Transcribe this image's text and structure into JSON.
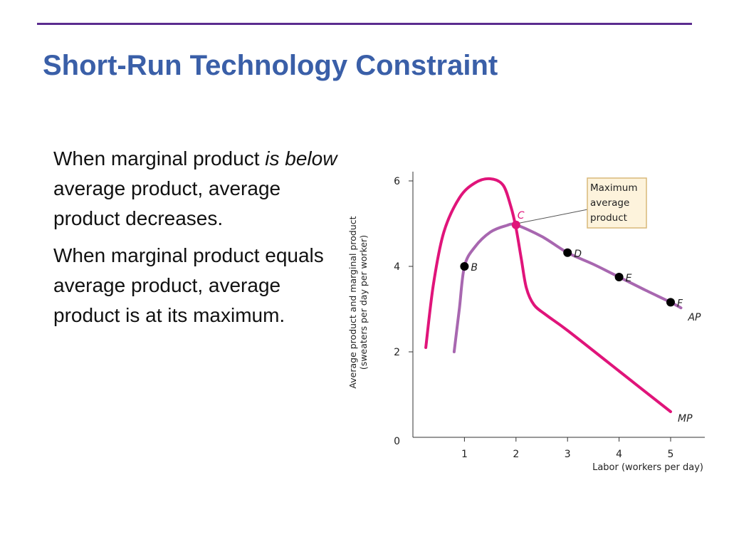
{
  "slide": {
    "title": "Short-Run Technology Constraint",
    "paragraph1": {
      "part1": "When marginal product ",
      "italic": "is below",
      "part2": " average product, average product decreases."
    },
    "paragraph2": "When marginal product equals average product, average product is at its maximum."
  },
  "colors": {
    "title": "#3a5fa8",
    "rule": "#5b2c8f",
    "mp_curve": "#e0147a",
    "ap_curve": "#a867b0",
    "callout_fill": "#fdf3dc",
    "callout_border": "#d9b97a"
  },
  "chart_data": {
    "type": "line",
    "xlabel": "Labor (workers per day)",
    "ylabel_line1": "Average product and marginal product",
    "ylabel_line2": "(sweaters per day per worker)",
    "origin_label": "0",
    "xlim": [
      0,
      5.25
    ],
    "ylim": [
      0,
      6.3
    ],
    "x_ticks": [
      1,
      2,
      3,
      4,
      5
    ],
    "y_ticks": [
      2,
      4,
      6
    ],
    "series": [
      {
        "name": "MP",
        "points": [
          [
            0.25,
            2.1
          ],
          [
            0.4,
            3.6
          ],
          [
            0.6,
            4.8
          ],
          [
            0.9,
            5.6
          ],
          [
            1.2,
            5.95
          ],
          [
            1.5,
            6.05
          ],
          [
            1.75,
            5.9
          ],
          [
            1.9,
            5.4
          ],
          [
            2.0,
            4.9
          ],
          [
            2.1,
            4.2
          ],
          [
            2.2,
            3.5
          ],
          [
            2.35,
            3.1
          ],
          [
            2.6,
            2.85
          ],
          [
            3.0,
            2.5
          ],
          [
            4.0,
            1.55
          ],
          [
            5.0,
            0.6
          ]
        ]
      },
      {
        "name": "AP",
        "points": [
          [
            0.8,
            2.0
          ],
          [
            0.9,
            3.0
          ],
          [
            1.0,
            4.0
          ],
          [
            1.2,
            4.45
          ],
          [
            1.5,
            4.8
          ],
          [
            1.8,
            4.95
          ],
          [
            2.0,
            4.97
          ],
          [
            2.5,
            4.7
          ],
          [
            3.0,
            4.32
          ],
          [
            3.5,
            4.05
          ],
          [
            4.0,
            3.75
          ],
          [
            4.5,
            3.45
          ],
          [
            5.0,
            3.16
          ],
          [
            5.2,
            3.03
          ]
        ]
      }
    ],
    "points": [
      {
        "label": "B",
        "x": 1,
        "y": 4.0
      },
      {
        "label": "C",
        "x": 2,
        "y": 4.97
      },
      {
        "label": "D",
        "x": 3,
        "y": 4.32
      },
      {
        "label": "E",
        "x": 4,
        "y": 3.75
      },
      {
        "label": "F",
        "x": 5,
        "y": 3.16
      }
    ],
    "annotation": {
      "lines": [
        "Maximum",
        "average",
        "product"
      ],
      "points_to": "C"
    }
  }
}
